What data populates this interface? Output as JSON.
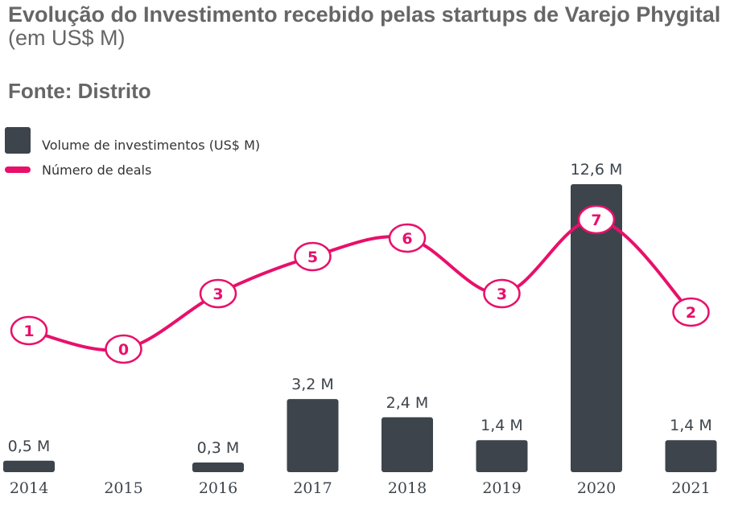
{
  "title_bold": "Evolução do Investimento recebido pelas startups de Varejo Phygital",
  "title_normal": "(em US$ M)",
  "source": "Fonte: Distrito",
  "colors": {
    "bar": "#3d444b",
    "line": "#e8106a",
    "circle_fill": "#ffffff"
  },
  "chart_data": {
    "type": "bar",
    "categories": [
      "2014",
      "2015",
      "2016",
      "2017",
      "2018",
      "2019",
      "2020",
      "2021"
    ],
    "series": [
      {
        "name": "Volume de investimentos (US$ M)",
        "type": "bar",
        "values": [
          0.5,
          null,
          0.3,
          3.2,
          2.4,
          1.4,
          12.6,
          1.4
        ],
        "labels": [
          "0,5 M",
          "",
          "0,3 M",
          "3,2 M",
          "2,4 M",
          "1,4 M",
          "12,6 M",
          "1,4 M"
        ]
      },
      {
        "name": "Número de deals",
        "type": "line",
        "values": [
          1,
          0,
          3,
          5,
          6,
          3,
          7,
          2
        ]
      }
    ],
    "legend": [
      "Volume de investimentos (US$ M)",
      "Número de deals"
    ],
    "legend_position": "top-left",
    "grid": false
  }
}
